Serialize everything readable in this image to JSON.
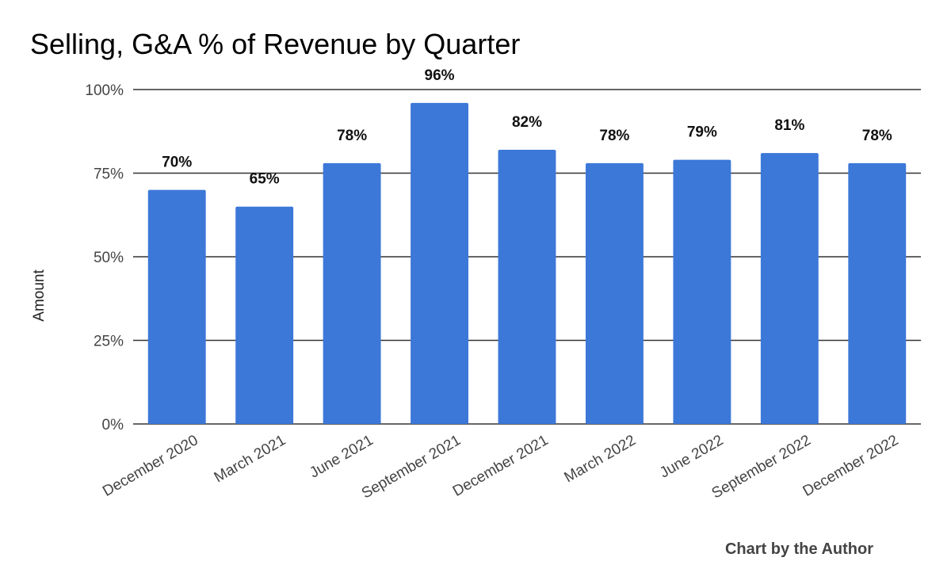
{
  "chart_data": {
    "type": "bar",
    "title": "Selling, G&A % of Revenue by Quarter",
    "xlabel": "",
    "ylabel": "Amount",
    "ylim": [
      0,
      100
    ],
    "yticks": [
      "0%",
      "25%",
      "50%",
      "75%",
      "100%"
    ],
    "ytick_values": [
      0,
      25,
      50,
      75,
      100
    ],
    "categories": [
      "December 2020",
      "March 2021",
      "June 2021",
      "September 2021",
      "December 2021",
      "March 2022",
      "June 2022",
      "September 2022",
      "December 2022"
    ],
    "values": [
      70,
      65,
      78,
      96,
      82,
      78,
      79,
      81,
      78
    ],
    "data_labels": [
      "70%",
      "65%",
      "78%",
      "96%",
      "82%",
      "78%",
      "79%",
      "81%",
      "78%"
    ],
    "bar_color": "#3c78d8",
    "grid": true,
    "legend": "none"
  },
  "footer": {
    "credit": "Chart by the Author"
  }
}
